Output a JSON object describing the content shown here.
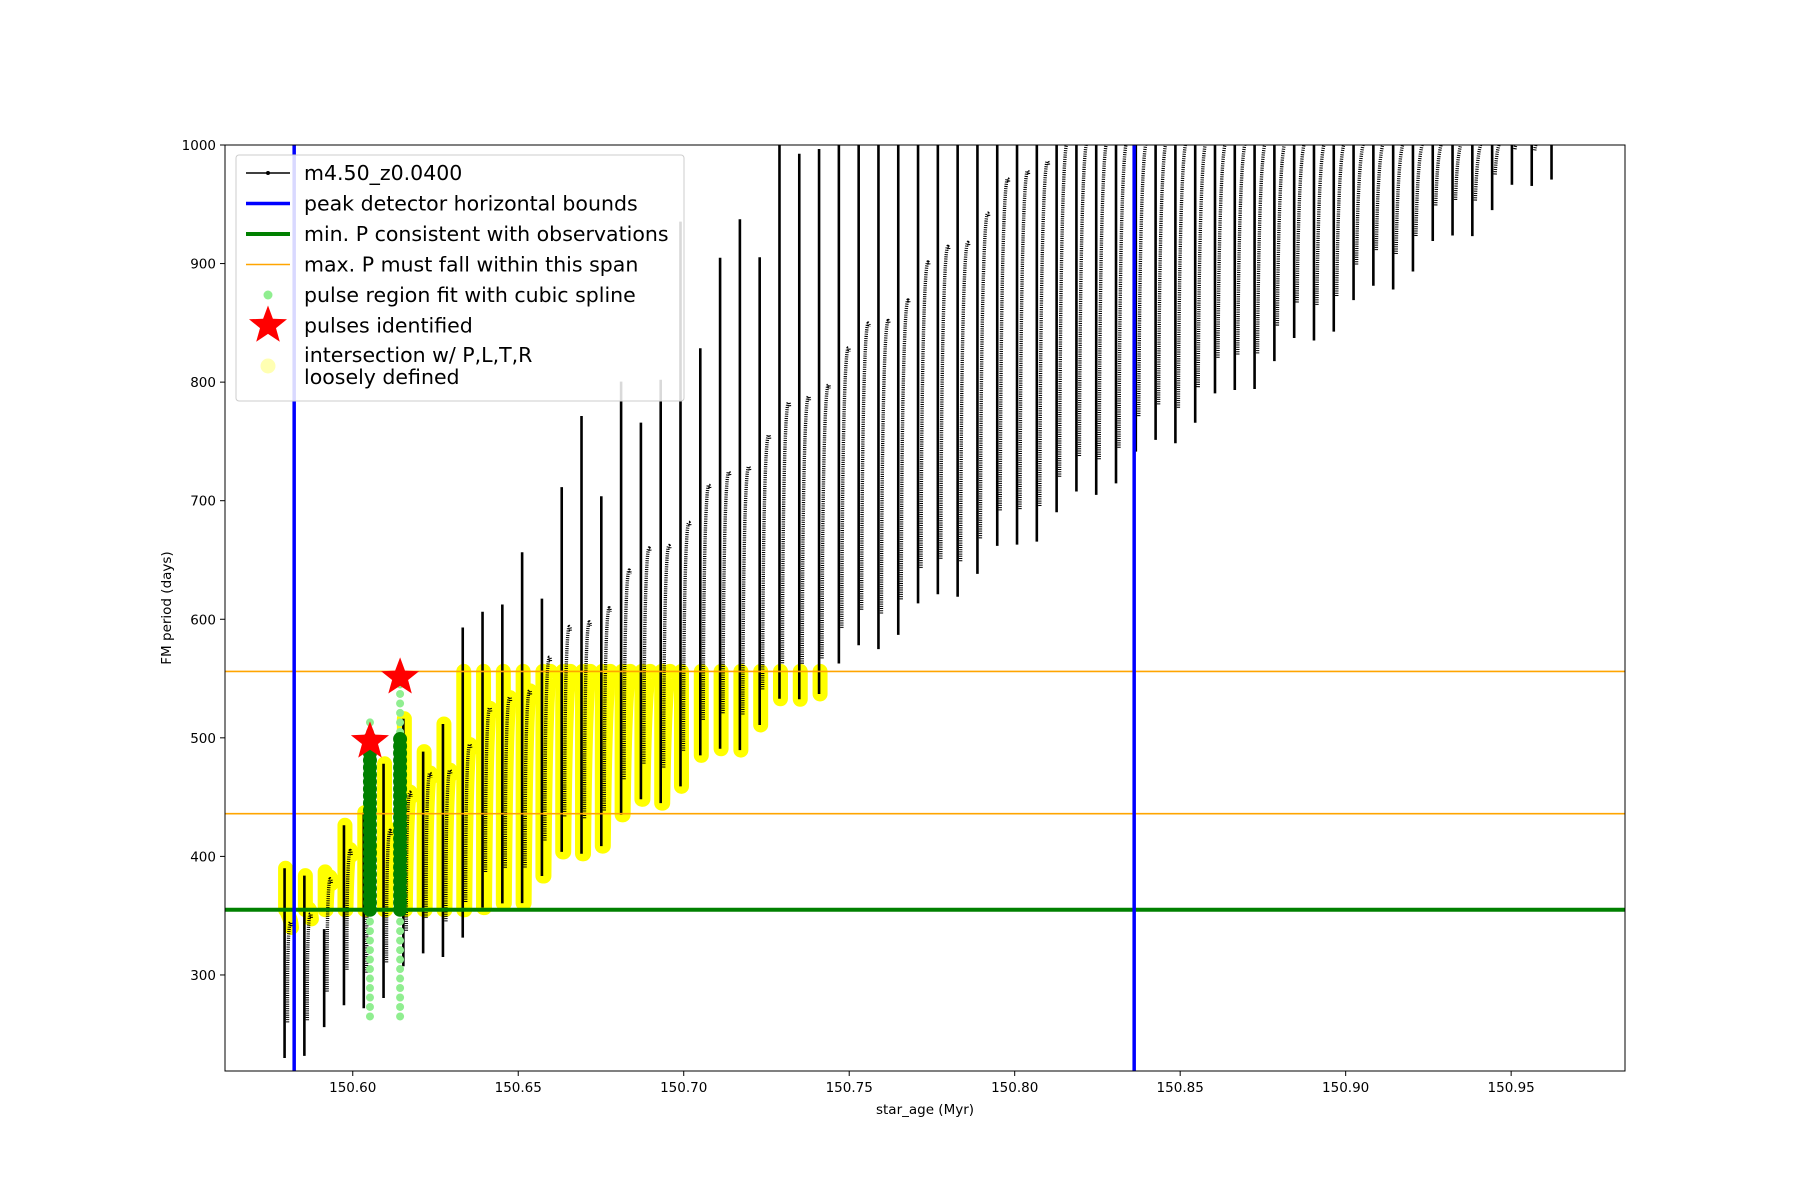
{
  "chart_data": {
    "type": "scatter",
    "xlabel": "star_age (Myr)",
    "ylabel": "FM period (days)",
    "xlim": [
      150.5614,
      150.9844
    ],
    "ylim": [
      219,
      1000
    ],
    "xticks": [
      150.6,
      150.65,
      150.7,
      150.75,
      150.8,
      150.85,
      150.9,
      150.95
    ],
    "xtick_labels": [
      "150.60",
      "150.65",
      "150.70",
      "150.75",
      "150.80",
      "150.85",
      "150.90",
      "150.95"
    ],
    "yticks": [
      300,
      400,
      500,
      600,
      700,
      800,
      900,
      1000
    ],
    "ytick_labels": [
      "300",
      "400",
      "500",
      "600",
      "700",
      "800",
      "900",
      "1000"
    ],
    "grid": false,
    "legend_position": "top-left",
    "series": [
      {
        "name": "m4.50_z0.0400",
        "kind": "line-with-dots",
        "color": "#000000",
        "pulse_x_start": 150.5794,
        "pulse_x_end": 150.9622,
        "pulse_count": 65,
        "period_min_start": 230,
        "period_min_end": 980
      },
      {
        "name": "peak detector horizontal bounds",
        "kind": "vline",
        "color": "#0000ff",
        "x": [
          150.5823,
          150.8361
        ]
      },
      {
        "name": "min. P consistent with observations",
        "kind": "hline",
        "color": "#008000",
        "y": 355
      },
      {
        "name": "max. P must fall within this span",
        "kind": "hline",
        "color": "#ffa500",
        "y": [
          436,
          556
        ]
      },
      {
        "name": "pulse region fit with cubic spline",
        "kind": "points",
        "color": "#90ee90",
        "x": [
          150.6052,
          150.6143
        ],
        "y_min": [
          265,
          265
        ],
        "y_max": [
          515,
          560
        ]
      },
      {
        "name": "pulses identified",
        "kind": "star-markers",
        "color": "#ff0000",
        "points": [
          {
            "x": 150.6052,
            "y": 497
          },
          {
            "x": 150.6143,
            "y": 551
          }
        ]
      },
      {
        "name": "intersection w/ P,L,T,R\nloosely defined",
        "kind": "highlight-points",
        "color": "#ffff00",
        "y_band": [
          355,
          556
        ]
      }
    ]
  }
}
